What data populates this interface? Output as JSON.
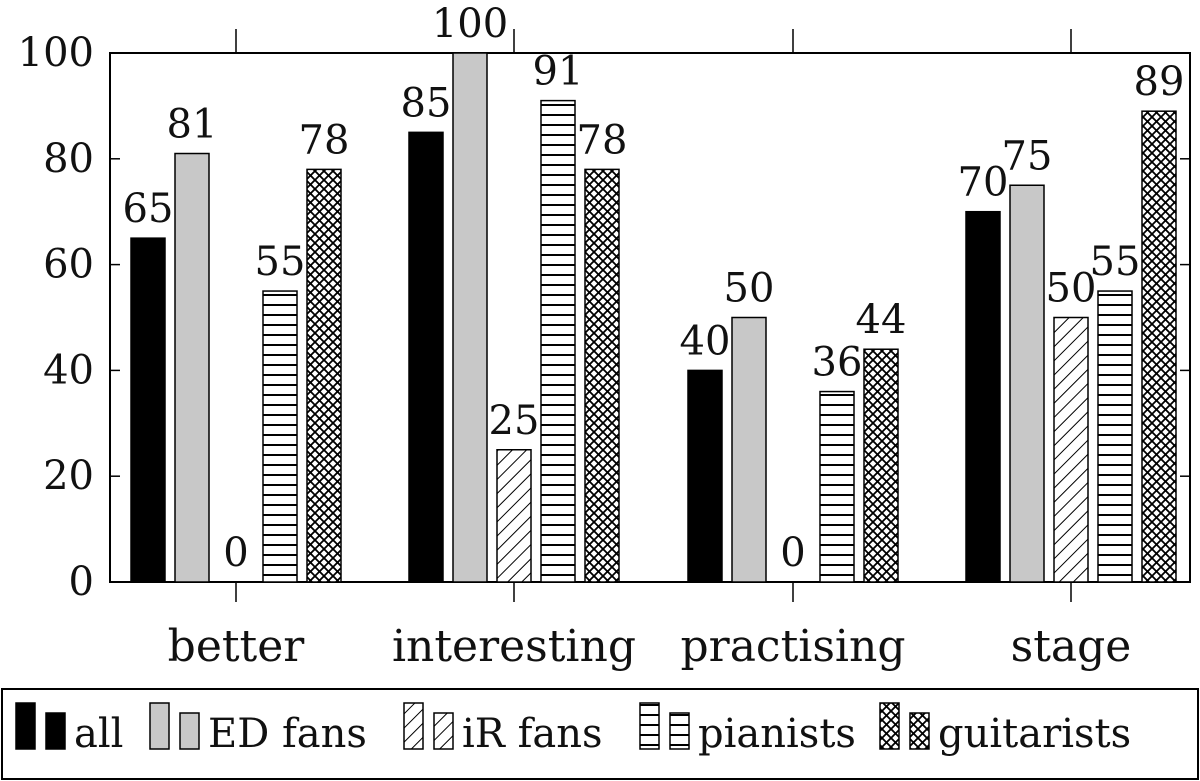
{
  "chart_data": {
    "type": "bar",
    "title": "",
    "xlabel": "",
    "ylabel": "",
    "ylim": [
      0,
      100
    ],
    "yticks": [
      0,
      20,
      40,
      60,
      80,
      100
    ],
    "grid": false,
    "legend_position": "bottom",
    "categories": [
      "better",
      "interesting",
      "practising",
      "stage"
    ],
    "series": [
      {
        "name": "all",
        "pattern": "solid-black",
        "values": [
          65,
          85,
          40,
          70
        ]
      },
      {
        "name": "ED fans",
        "pattern": "solid-gray",
        "values": [
          81,
          100,
          50,
          75
        ]
      },
      {
        "name": "iR fans",
        "pattern": "diagonal-lines",
        "values": [
          0,
          25,
          0,
          50
        ]
      },
      {
        "name": "pianists",
        "pattern": "horizontal-lines",
        "values": [
          55,
          91,
          36,
          55
        ]
      },
      {
        "name": "guitarists",
        "pattern": "crosshatch",
        "values": [
          78,
          78,
          44,
          89
        ]
      }
    ],
    "colors": {
      "all": "#000000",
      "ED fans": "#c8c8c8",
      "axis": "#000000"
    }
  }
}
